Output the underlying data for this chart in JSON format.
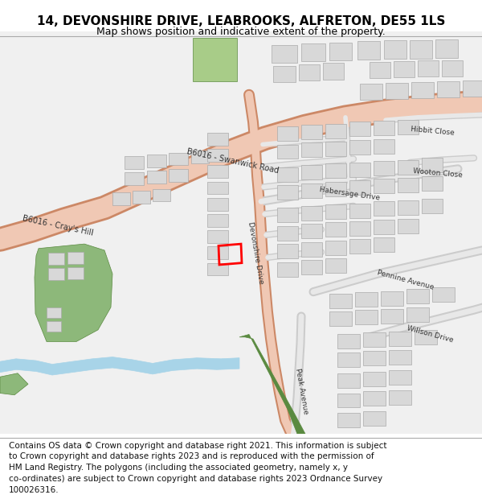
{
  "title": "14, DEVONSHIRE DRIVE, LEABROOKS, ALFRETON, DE55 1LS",
  "subtitle": "Map shows position and indicative extent of the property.",
  "footer_lines": [
    "Contains OS data © Crown copyright and database right 2021. This information is subject",
    "to Crown copyright and database rights 2023 and is reproduced with the permission of",
    "HM Land Registry. The polygons (including the associated geometry, namely x, y",
    "co-ordinates) are subject to Crown copyright and database rights 2023 Ordnance Survey",
    "100026316."
  ],
  "bg_color": "#ffffff",
  "map_bg": "#f0f0f0",
  "road_color": "#f0c8b4",
  "road_edge_color": "#cc8866",
  "building_color": "#d8d8d8",
  "building_edge": "#aaaaaa",
  "green_area_color": "#8db87a",
  "green_strip_color": "#5a8a40",
  "water_color": "#a8d4e8",
  "highlight_color": "#ff0000",
  "title_fontsize": 11,
  "subtitle_fontsize": 9,
  "footer_fontsize": 7.5
}
